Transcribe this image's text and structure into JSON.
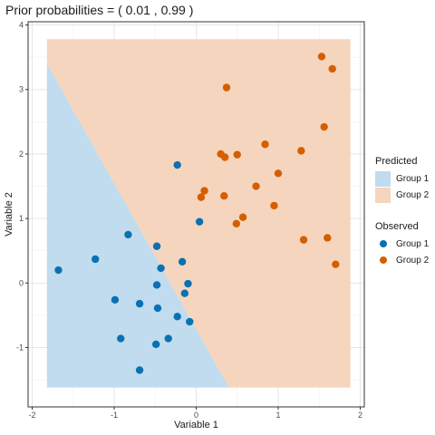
{
  "chart_data": {
    "type": "scatter",
    "title": "Prior probabilities = ( 0.01 , 0.99 )",
    "xlabel": "Variable 1",
    "ylabel": "Variable 2",
    "xlim": [
      -2.05,
      2.05
    ],
    "ylim": [
      -1.92,
      4.05
    ],
    "x_ticks": [
      -2,
      -1,
      0,
      1,
      2
    ],
    "y_ticks": [
      -1,
      0,
      1,
      2,
      3,
      4
    ],
    "grid": true,
    "legend_position": "right",
    "predicted_region": {
      "x_range": [
        -1.82,
        1.88
      ],
      "y_range": [
        -1.62,
        3.78
      ],
      "boundary_line": [
        [
          -1.82,
          3.4
        ],
        [
          0.4,
          -1.62
        ]
      ]
    },
    "predicted_legend": {
      "title": "Predicted",
      "items": [
        {
          "label": "Group 1",
          "color": "#c0dcee"
        },
        {
          "label": "Group 2",
          "color": "#f5d5bd"
        }
      ]
    },
    "observed_legend": {
      "title": "Observed",
      "items": [
        {
          "label": "Group 1",
          "color": "#0a72b2"
        },
        {
          "label": "Group 2",
          "color": "#d55e00"
        }
      ]
    },
    "series": [
      {
        "name": "Group 1",
        "color": "#0a72b2",
        "points": [
          [
            -1.68,
            0.2
          ],
          [
            -1.23,
            0.37
          ],
          [
            -0.83,
            0.75
          ],
          [
            -0.99,
            -0.26
          ],
          [
            -0.69,
            -0.32
          ],
          [
            -0.92,
            -0.86
          ],
          [
            -0.69,
            -1.35
          ],
          [
            -0.49,
            -0.95
          ],
          [
            -0.34,
            -0.86
          ],
          [
            -0.48,
            -0.03
          ],
          [
            -0.43,
            0.23
          ],
          [
            -0.47,
            -0.39
          ],
          [
            -0.23,
            -0.52
          ],
          [
            -0.08,
            -0.6
          ],
          [
            -0.14,
            -0.16
          ],
          [
            -0.1,
            -0.01
          ],
          [
            -0.17,
            0.33
          ],
          [
            -0.48,
            0.57
          ],
          [
            -0.23,
            1.83
          ],
          [
            0.04,
            0.95
          ]
        ]
      },
      {
        "name": "Group 2",
        "color": "#d55e00",
        "points": [
          [
            1.53,
            3.51
          ],
          [
            1.66,
            3.32
          ],
          [
            0.37,
            3.03
          ],
          [
            1.56,
            2.42
          ],
          [
            0.84,
            2.15
          ],
          [
            1.28,
            2.05
          ],
          [
            0.3,
            2.0
          ],
          [
            0.35,
            1.95
          ],
          [
            0.5,
            1.99
          ],
          [
            1.0,
            1.7
          ],
          [
            0.73,
            1.5
          ],
          [
            0.1,
            1.43
          ],
          [
            0.06,
            1.33
          ],
          [
            0.34,
            1.35
          ],
          [
            0.95,
            1.2
          ],
          [
            0.57,
            1.02
          ],
          [
            0.49,
            0.92
          ],
          [
            1.31,
            0.67
          ],
          [
            1.6,
            0.7
          ],
          [
            1.7,
            0.29
          ]
        ]
      }
    ]
  }
}
